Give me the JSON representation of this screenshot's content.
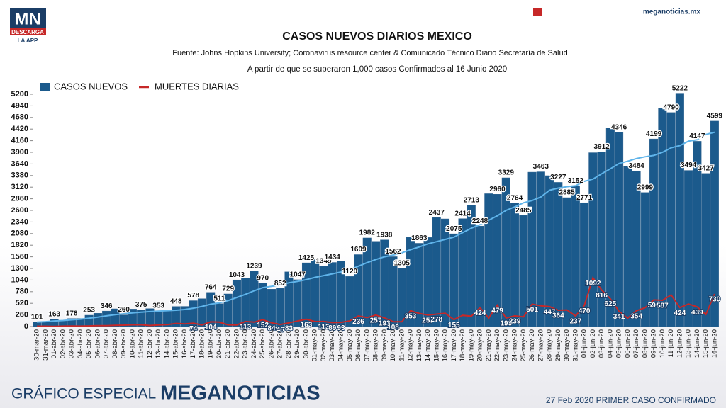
{
  "branding": {
    "logo": "MN",
    "download": "DESCARGA",
    "app": "LA APP",
    "site": "meganoticias.mx",
    "footer_left": "GRÁFICO ESPECIAL",
    "footer_brand": "MEGANOTICIAS",
    "footer_right": "27 Feb 2020 PRIMER CASO CONFIRMADO"
  },
  "chart_data": {
    "type": "bar",
    "title": "CASOS NUEVOS DIARIOS MEXICO",
    "subtitle": "Fuente: Johns Hopkins University; Coronavirus resource center & Comunicado Técnico Diario Secretaría de Salud",
    "note": "A partir de que se superaron 1,000 casos Confirmados al 16 Junio 2020",
    "categories": [
      "30-mar-20",
      "31-mar-20",
      "01-abr-20",
      "02-abr-20",
      "03-abr-20",
      "04-abr-20",
      "05-abr-20",
      "06-abr-20",
      "07-abr-20",
      "08-abr-20",
      "09-abr-20",
      "10-abr-20",
      "11-abr-20",
      "12-abr-20",
      "13-abr-20",
      "14-abr-20",
      "15-abr-20",
      "16-abr-20",
      "17-abr-20",
      "18-abr-20",
      "19-abr-20",
      "20-abr-20",
      "21-abr-20",
      "22-abr-20",
      "23-abr-20",
      "24-abr-20",
      "25-abr-20",
      "26-abr-20",
      "27-abr-20",
      "28-abr-20",
      "29-abr-20",
      "30-abr-20",
      "01-may-20",
      "02-may-20",
      "03-may-20",
      "04-may-20",
      "05-may-20",
      "06-may-20",
      "07-may-20",
      "08-may-20",
      "09-may-20",
      "10-may-20",
      "11-may-20",
      "12-may-20",
      "13-may-20",
      "14-may-20",
      "15-may-20",
      "16-may-20",
      "17-may-20",
      "18-may-20",
      "19-may-20",
      "20-may-20",
      "21-may-20",
      "22-may-20",
      "23-may-20",
      "24-may-20",
      "25-may-20",
      "26-may-20",
      "27-may-20",
      "28-may-20",
      "29-may-20",
      "30-may-20",
      "31-may-20",
      "01-jun-20",
      "02-jun-20",
      "03-jun-20",
      "04-jun-20",
      "05-jun-20",
      "06-jun-20",
      "07-jun-20",
      "08-jun-20",
      "09-jun-20",
      "10-jun-20",
      "11-jun-20",
      "12-jun-20",
      "13-jun-20",
      "14-jun-20",
      "15-jun-20",
      "16-jun-20"
    ],
    "series": [
      {
        "name": "CASOS NUEVOS",
        "kind": "bar",
        "color": "#1b5a8c",
        "values": [
          101,
          110,
          163,
          130,
          178,
          180,
          253,
          296,
          346,
          396,
          260,
          390,
          375,
          400,
          353,
          370,
          448,
          450,
          578,
          622,
          764,
          511,
          729,
          1043,
          1089,
          1239,
          970,
          835,
          852,
          1223,
          1047,
          1425,
          1515,
          1349,
          1434,
          1470,
          1120,
          1609,
          1982,
          1906,
          1938,
          1562,
          1305,
          1997,
          1863,
          1992,
          2437,
          2409,
          2075,
          2414,
          2713,
          2248,
          2973,
          2960,
          3329,
          2764,
          2485,
          3455,
          3463,
          3377,
          3227,
          2885,
          3152,
          2771,
          3891,
          3912,
          4442,
          4346,
          3593,
          3484,
          2999,
          4199,
          4883,
          4790,
          5222,
          3494,
          4147,
          3427,
          4599
        ],
        "value_labels": [
          "101",
          null,
          "163",
          null,
          "178",
          null,
          "253",
          null,
          "346",
          null,
          "260",
          null,
          "375",
          null,
          "353",
          null,
          "448",
          null,
          "578",
          null,
          "764",
          "511",
          "729",
          "1043",
          null,
          "1239",
          "970",
          null,
          "852",
          null,
          "1047",
          "1425",
          null,
          "1349",
          "1434",
          null,
          "1120",
          "1609",
          "1982",
          null,
          "1938",
          "1562",
          "1305",
          null,
          "1863",
          null,
          "2437",
          null,
          "2075",
          "2414",
          "2713",
          "2248",
          null,
          "2960",
          "3329",
          "2764",
          "2485",
          null,
          "3463",
          null,
          "3227",
          "2885",
          "3152",
          "2771",
          null,
          "3912",
          null,
          "4346",
          null,
          "3484",
          "2999",
          "4199",
          null,
          "4790",
          "5222",
          "3494",
          "4147",
          "3427",
          "4599"
        ]
      },
      {
        "name": "MUERTES DIARIAS",
        "kind": "line",
        "color": "#c62828",
        "values": [
          8,
          8,
          3,
          9,
          13,
          9,
          15,
          20,
          21,
          28,
          31,
          39,
          40,
          23,
          36,
          43,
          70,
          60,
          74,
          37,
          104,
          99,
          38,
          36,
          113,
          99,
          152,
          84,
          46,
          83,
          124,
          163,
          111,
          113,
          89,
          93,
          125,
          236,
          199,
          257,
          193,
          108,
          106,
          353,
          294,
          257,
          278,
          296,
          155,
          250,
          232,
          424,
          188,
          479,
          190,
          239,
          215,
          501,
          463,
          447,
          364,
          371,
          237,
          470,
          1092,
          816,
          625,
          341,
          188,
          354,
          420,
          596,
          587,
          708,
          424,
          504,
          439,
          269,
          730
        ],
        "value_labels": [
          null,
          null,
          null,
          null,
          null,
          null,
          null,
          null,
          null,
          null,
          null,
          null,
          null,
          null,
          null,
          null,
          null,
          null,
          "74",
          null,
          "104",
          null,
          null,
          null,
          "113",
          null,
          "152",
          "84",
          "46",
          "83",
          null,
          "163",
          null,
          "113",
          "89",
          "93",
          null,
          "236",
          null,
          "257",
          "193",
          "108",
          null,
          "353",
          null,
          "257",
          "278",
          null,
          "155",
          null,
          null,
          "424",
          null,
          "479",
          "190",
          "239",
          null,
          "501",
          null,
          "447",
          "364",
          null,
          "237",
          "470",
          "1092",
          "816",
          "625",
          "341",
          null,
          "354",
          null,
          "596",
          "587",
          null,
          "424",
          null,
          "439",
          null,
          "730"
        ]
      },
      {
        "kind": "line",
        "color": "#5fb4ea",
        "values": [
          100,
          110,
          125,
          135,
          150,
          165,
          185,
          210,
          240,
          265,
          285,
          305,
          320,
          335,
          345,
          355,
          365,
          380,
          410,
          450,
          500,
          530,
          580,
          650,
          720,
          800,
          870,
          900,
          930,
          980,
          1010,
          1050,
          1100,
          1140,
          1180,
          1220,
          1270,
          1350,
          1430,
          1500,
          1560,
          1600,
          1650,
          1720,
          1780,
          1850,
          1900,
          1950,
          2000,
          2100,
          2200,
          2280,
          2380,
          2480,
          2600,
          2680,
          2770,
          2820,
          2900,
          3050,
          3100,
          3130,
          3150,
          3250,
          3300,
          3420,
          3530,
          3650,
          3700,
          3760,
          3800,
          3830,
          3900,
          4000,
          4050,
          4150,
          4180,
          4300,
          4350
        ]
      }
    ],
    "ylim": [
      0,
      5200
    ],
    "yticks": [
      0,
      260,
      520,
      780,
      1040,
      1300,
      1560,
      1820,
      2080,
      2340,
      2600,
      2860,
      3120,
      3380,
      3640,
      3900,
      4160,
      4420,
      4680,
      4940,
      5200
    ],
    "grid": false,
    "legend": "top-left"
  }
}
